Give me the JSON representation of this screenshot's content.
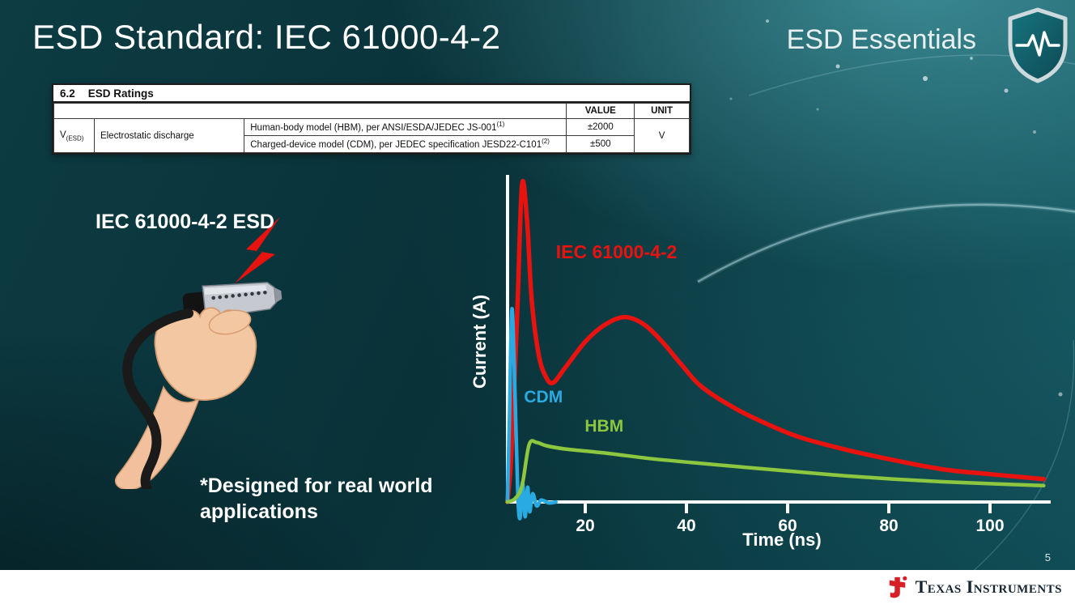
{
  "slide": {
    "title": "ESD Standard: IEC 61000-4-2",
    "brand": "ESD Essentials",
    "page_number": "5",
    "footer_brand": "Texas Instruments"
  },
  "icons": {
    "shield": "esd-shield-icon",
    "lightning": "lightning-bolt-icon",
    "logo": "ti-logo-icon"
  },
  "colors": {
    "iec_red": "#e8120f",
    "cdm_blue": "#29abe2",
    "hbm_green": "#8dc63f",
    "background_teal": "#0c444d"
  },
  "ratings_table": {
    "section_number": "6.2",
    "section_title": "ESD Ratings",
    "value_header": "VALUE",
    "unit_header": "UNIT",
    "param_symbol": "V",
    "param_symbol_sub": "(ESD)",
    "param_name": "Electrostatic discharge",
    "rows": [
      {
        "description": "Human-body model (HBM), per ANSI/ESDA/JEDEC JS-001",
        "footnote": "(1)",
        "value": "±2000"
      },
      {
        "description": "Charged-device model (CDM), per JEDEC specification JESD22-C101",
        "footnote": "(2)",
        "value": "±500"
      }
    ],
    "unit": "V"
  },
  "illustration": {
    "caption": "IEC 61000-4-2 ESD",
    "note_line1": "*Designed for real world",
    "note_line2": "applications"
  },
  "chart_data": {
    "type": "line",
    "title": "",
    "xlabel": "Time (ns)",
    "ylabel": "Current (A)",
    "xlim": [
      0,
      112
    ],
    "ylim": [
      0,
      10
    ],
    "x_ticks": [
      20,
      40,
      60,
      80,
      100
    ],
    "grid": false,
    "legend": "inline-labels",
    "series": [
      {
        "name": "IEC 61000-4-2",
        "color": "#e8120f",
        "width": 5.5,
        "label_pos": [
          14.2,
          7.45
        ],
        "label_size": 23,
        "points": [
          [
            4.6,
            0
          ],
          [
            5.4,
            1.5
          ],
          [
            6.6,
            6.0
          ],
          [
            7.5,
            9.7
          ],
          [
            8.5,
            8.6
          ],
          [
            9.4,
            6.2
          ],
          [
            10.8,
            4.5
          ],
          [
            12.3,
            3.8
          ],
          [
            13.7,
            3.65
          ],
          [
            16,
            4.1
          ],
          [
            20,
            4.9
          ],
          [
            23.7,
            5.4
          ],
          [
            27.6,
            5.65
          ],
          [
            31.4,
            5.45
          ],
          [
            35.2,
            4.9
          ],
          [
            39,
            4.2
          ],
          [
            42.8,
            3.55
          ],
          [
            48.6,
            2.95
          ],
          [
            54.3,
            2.5
          ],
          [
            62,
            2.0
          ],
          [
            71.5,
            1.6
          ],
          [
            81,
            1.28
          ],
          [
            90.6,
            1.0
          ],
          [
            100,
            0.85
          ],
          [
            110.6,
            0.7
          ]
        ]
      },
      {
        "name": "CDM",
        "color": "#29abe2",
        "width": 4.5,
        "label_pos": [
          7.9,
          3.05
        ],
        "label_size": 21,
        "points": [
          [
            4.6,
            0
          ],
          [
            5.0,
            2.5
          ],
          [
            5.5,
            5.9
          ],
          [
            6.1,
            3.4
          ],
          [
            6.65,
            0.3
          ],
          [
            7.1,
            -0.5
          ],
          [
            7.6,
            0.6
          ],
          [
            8.1,
            -0.45
          ],
          [
            8.6,
            0.45
          ],
          [
            9.0,
            -0.3
          ],
          [
            9.6,
            0.25
          ],
          [
            10.4,
            -0.12
          ],
          [
            11.3,
            0.06
          ],
          [
            12.8,
            -0.03
          ],
          [
            14.2,
            0
          ]
        ]
      },
      {
        "name": "HBM",
        "color": "#8dc63f",
        "width": 4.5,
        "label_pos": [
          19.9,
          2.15
        ],
        "label_size": 21,
        "points": [
          [
            4.6,
            0
          ],
          [
            6.1,
            0.1
          ],
          [
            7.5,
            0.5
          ],
          [
            8.9,
            1.75
          ],
          [
            10.4,
            1.82
          ],
          [
            12.3,
            1.72
          ],
          [
            16.1,
            1.62
          ],
          [
            23.7,
            1.5
          ],
          [
            33.3,
            1.32
          ],
          [
            42.8,
            1.18
          ],
          [
            52.4,
            1.05
          ],
          [
            62,
            0.92
          ],
          [
            71.5,
            0.8
          ],
          [
            81,
            0.7
          ],
          [
            90.6,
            0.62
          ],
          [
            100,
            0.56
          ],
          [
            110.6,
            0.5
          ]
        ]
      }
    ]
  }
}
